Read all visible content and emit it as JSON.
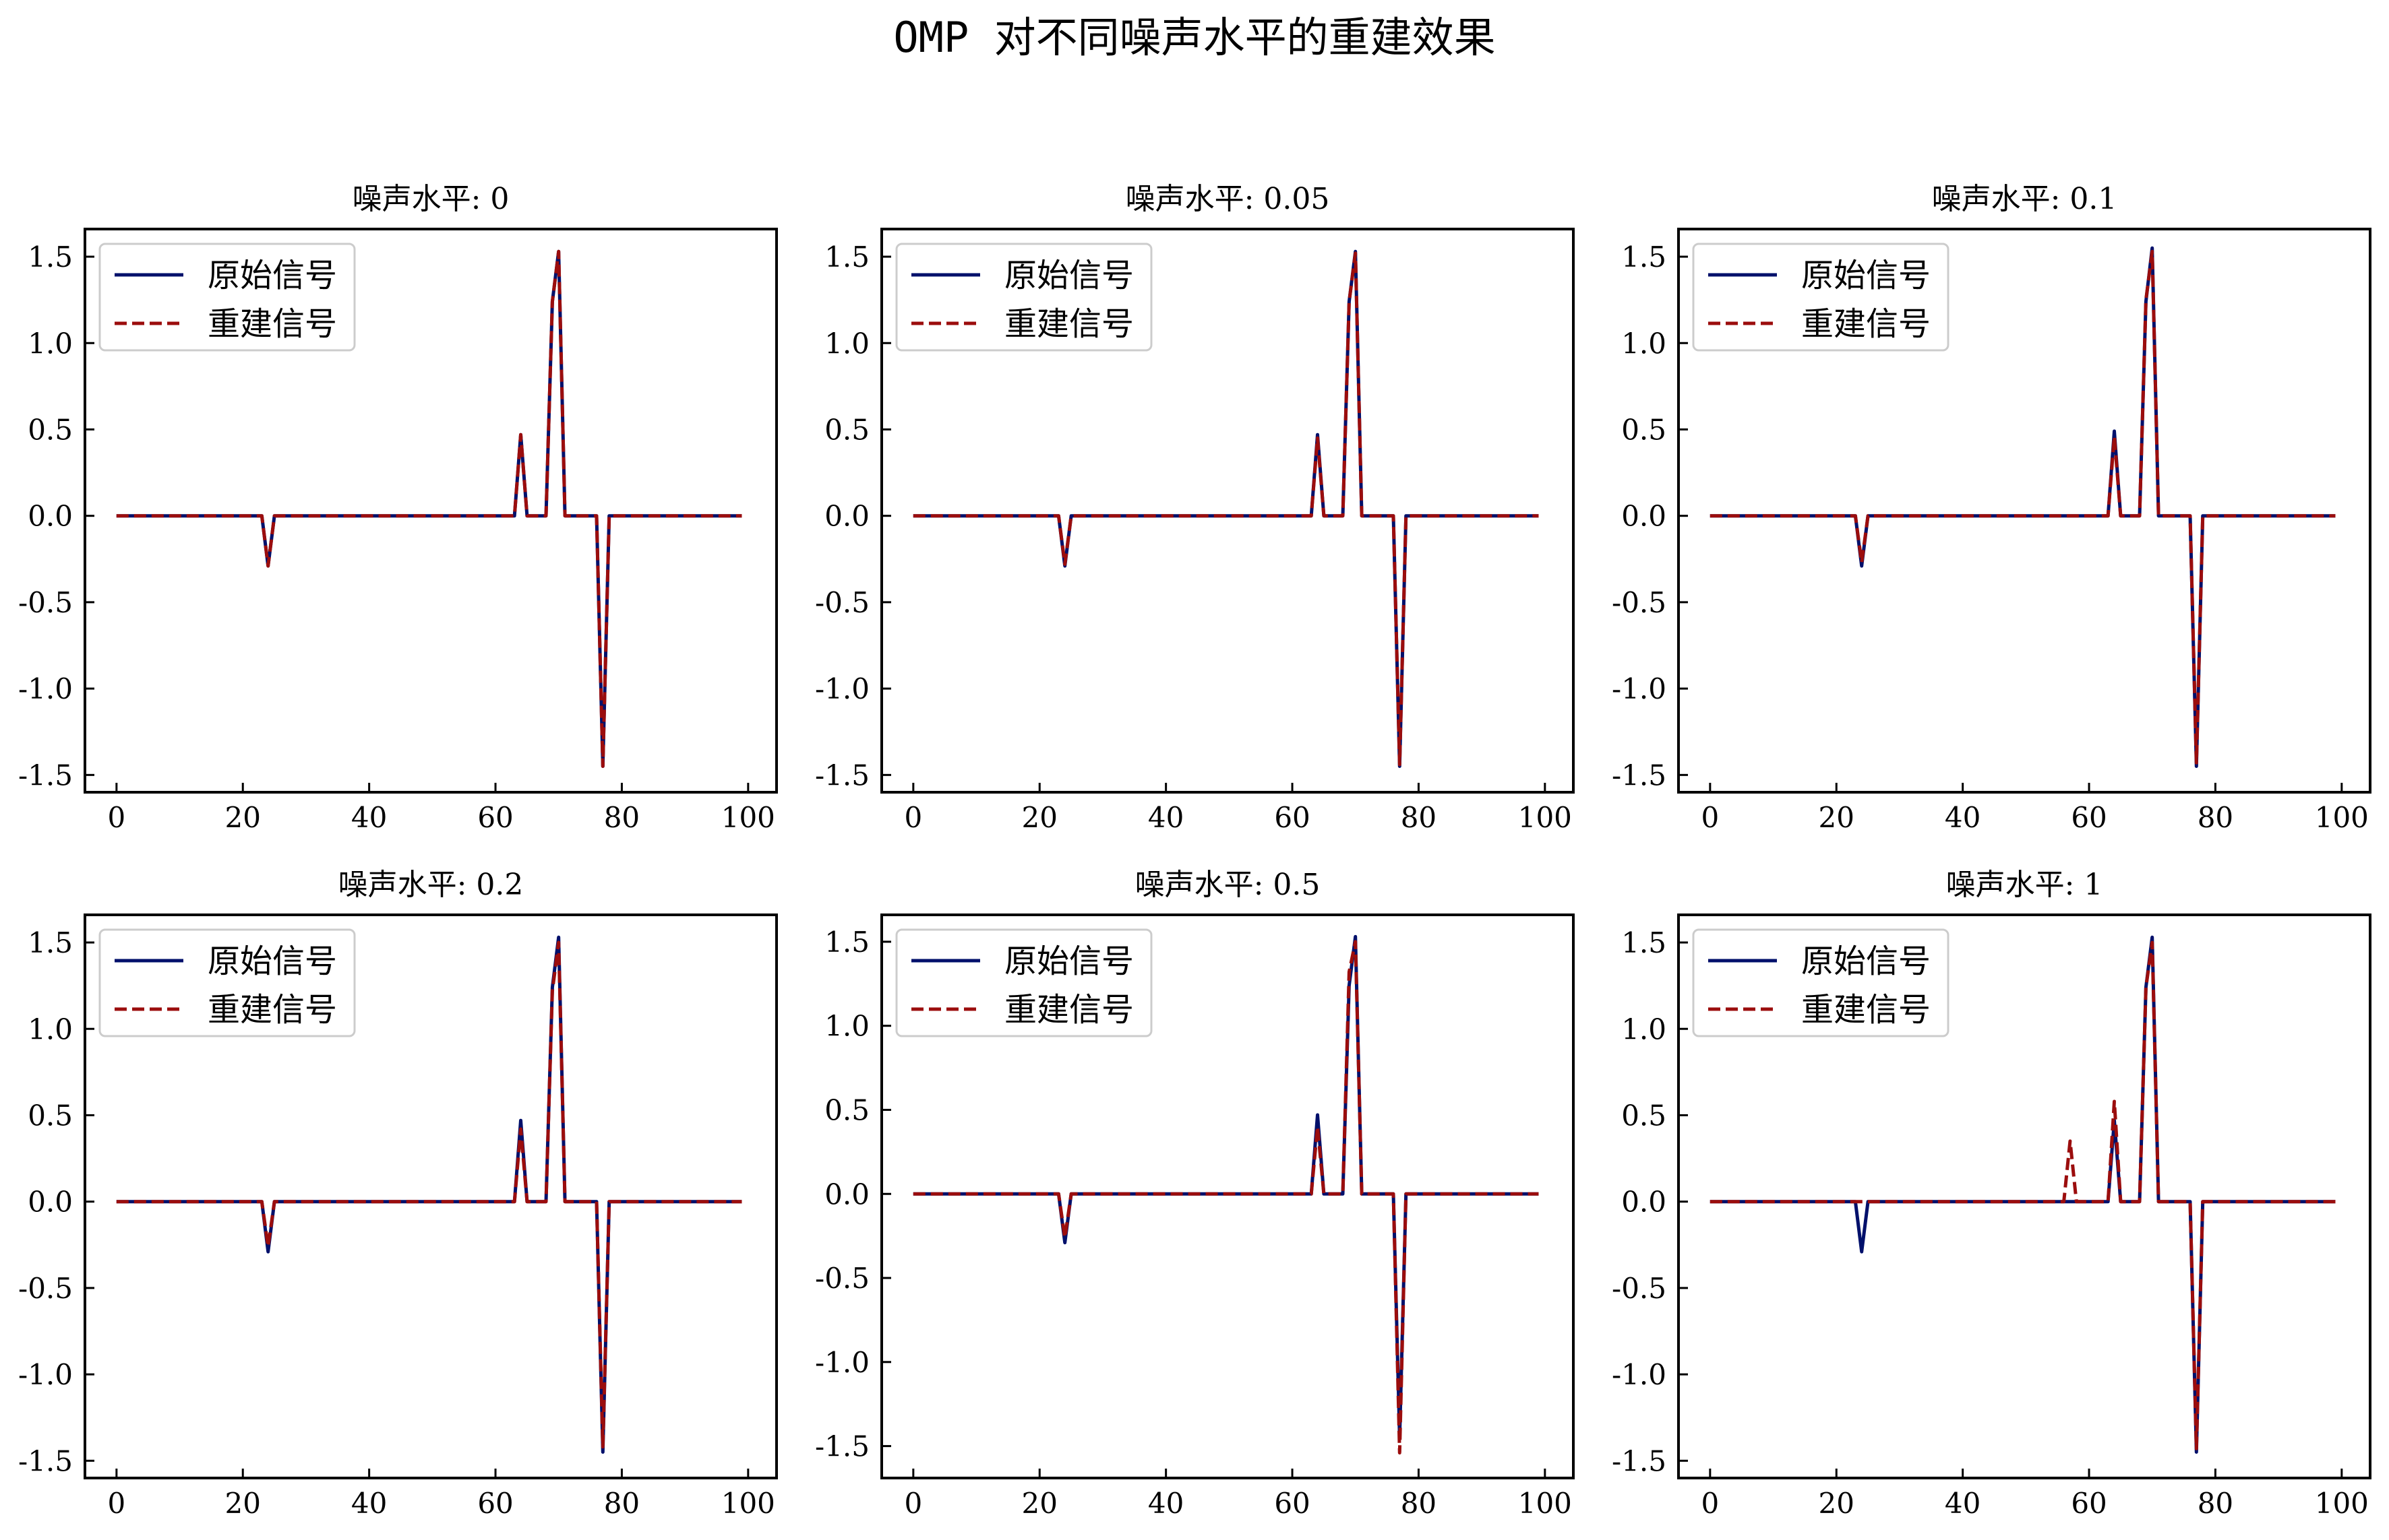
{
  "figure": {
    "title": "OMP 对不同噪声水平的重建效果",
    "colors": {
      "original": "#00106b",
      "reconstructed": "#9b0d0d"
    }
  },
  "chart_data": [
    {
      "type": "line",
      "title": "噪声水平: 0",
      "xlim": [
        0,
        100
      ],
      "ylim": [
        -1.6,
        1.66
      ],
      "xticks": [
        0,
        20,
        40,
        60,
        80,
        100
      ],
      "yticks": [
        -1.5,
        -1.0,
        -0.5,
        0.0,
        0.5,
        1.0,
        1.5
      ],
      "ytick_labels": [
        "-1.5",
        "-1.0",
        "-0.5",
        "0.0",
        "0.5",
        "1.0",
        "1.5"
      ],
      "legend": "upper-left",
      "grid": false,
      "series": [
        {
          "name": "原始信号",
          "style": "solid",
          "color": "#00106b",
          "x": [
            0,
            23,
            24,
            25,
            63,
            64,
            65,
            68,
            69,
            70,
            71,
            76,
            77,
            78,
            99
          ],
          "y": [
            0,
            0,
            -0.29,
            0,
            0,
            0.47,
            0,
            0,
            1.24,
            1.53,
            0,
            0,
            -1.45,
            0,
            0
          ]
        },
        {
          "name": "重建信号",
          "style": "dashed",
          "color": "#9b0d0d",
          "x": [
            0,
            23,
            24,
            25,
            63,
            64,
            65,
            68,
            69,
            70,
            71,
            76,
            77,
            78,
            99
          ],
          "y": [
            0,
            0,
            -0.29,
            0,
            0,
            0.47,
            0,
            0,
            1.24,
            1.53,
            0,
            0,
            -1.45,
            0,
            0
          ]
        }
      ]
    },
    {
      "type": "line",
      "title": "噪声水平: 0.05",
      "xlim": [
        0,
        100
      ],
      "ylim": [
        -1.6,
        1.66
      ],
      "xticks": [
        0,
        20,
        40,
        60,
        80,
        100
      ],
      "yticks": [
        -1.5,
        -1.0,
        -0.5,
        0.0,
        0.5,
        1.0,
        1.5
      ],
      "ytick_labels": [
        "-1.5",
        "-1.0",
        "-0.5",
        "0.0",
        "0.5",
        "1.0",
        "1.5"
      ],
      "legend": "upper-left",
      "grid": false,
      "series": [
        {
          "name": "原始信号",
          "style": "solid",
          "color": "#00106b",
          "x": [
            0,
            23,
            24,
            25,
            63,
            64,
            65,
            68,
            69,
            70,
            71,
            76,
            77,
            78,
            99
          ],
          "y": [
            0,
            0,
            -0.29,
            0,
            0,
            0.47,
            0,
            0,
            1.24,
            1.53,
            0,
            0,
            -1.45,
            0,
            0
          ]
        },
        {
          "name": "重建信号",
          "style": "dashed",
          "color": "#9b0d0d",
          "x": [
            0,
            23,
            24,
            25,
            63,
            64,
            65,
            68,
            69,
            70,
            71,
            76,
            77,
            78,
            99
          ],
          "y": [
            0,
            0,
            -0.28,
            0,
            0,
            0.45,
            0,
            0,
            1.24,
            1.52,
            0,
            0,
            -1.44,
            0,
            0
          ]
        }
      ]
    },
    {
      "type": "line",
      "title": "噪声水平: 0.1",
      "xlim": [
        0,
        100
      ],
      "ylim": [
        -1.6,
        1.66
      ],
      "xticks": [
        0,
        20,
        40,
        60,
        80,
        100
      ],
      "yticks": [
        -1.5,
        -1.0,
        -0.5,
        0.0,
        0.5,
        1.0,
        1.5
      ],
      "ytick_labels": [
        "-1.5",
        "-1.0",
        "-0.5",
        "0.0",
        "0.5",
        "1.0",
        "1.5"
      ],
      "legend": "upper-left",
      "grid": false,
      "series": [
        {
          "name": "原始信号",
          "style": "solid",
          "color": "#00106b",
          "x": [
            0,
            23,
            24,
            25,
            63,
            64,
            65,
            68,
            69,
            70,
            71,
            76,
            77,
            78,
            99
          ],
          "y": [
            0,
            0,
            -0.29,
            0,
            0,
            0.49,
            0,
            0,
            1.24,
            1.55,
            0,
            0,
            -1.45,
            0,
            0
          ]
        },
        {
          "name": "重建信号",
          "style": "dashed",
          "color": "#9b0d0d",
          "x": [
            0,
            23,
            24,
            25,
            63,
            64,
            65,
            68,
            69,
            70,
            71,
            76,
            77,
            78,
            99
          ],
          "y": [
            0,
            0,
            -0.27,
            0,
            0,
            0.46,
            0,
            0,
            1.25,
            1.53,
            0,
            0,
            -1.43,
            0,
            0
          ]
        }
      ]
    },
    {
      "type": "line",
      "title": "噪声水平: 0.2",
      "xlim": [
        0,
        100
      ],
      "ylim": [
        -1.6,
        1.66
      ],
      "xticks": [
        0,
        20,
        40,
        60,
        80,
        100
      ],
      "yticks": [
        -1.5,
        -1.0,
        -0.5,
        0.0,
        0.5,
        1.0,
        1.5
      ],
      "ytick_labels": [
        "-1.5",
        "-1.0",
        "-0.5",
        "0.0",
        "0.5",
        "1.0",
        "1.5"
      ],
      "legend": "upper-left",
      "grid": false,
      "series": [
        {
          "name": "原始信号",
          "style": "solid",
          "color": "#00106b",
          "x": [
            0,
            23,
            24,
            25,
            63,
            64,
            65,
            68,
            69,
            70,
            71,
            76,
            77,
            78,
            99
          ],
          "y": [
            0,
            0,
            -0.29,
            0,
            0,
            0.47,
            0,
            0,
            1.24,
            1.53,
            0,
            0,
            -1.45,
            0,
            0
          ]
        },
        {
          "name": "重建信号",
          "style": "dashed",
          "color": "#9b0d0d",
          "x": [
            0,
            23,
            24,
            25,
            63,
            64,
            65,
            68,
            69,
            70,
            71,
            76,
            77,
            78,
            99
          ],
          "y": [
            0,
            0,
            -0.26,
            0,
            0,
            0.42,
            0,
            0,
            1.22,
            1.5,
            0,
            0,
            -1.42,
            0,
            0
          ]
        }
      ]
    },
    {
      "type": "line",
      "title": "噪声水平: 0.5",
      "xlim": [
        0,
        100
      ],
      "ylim": [
        -1.69,
        1.66
      ],
      "xticks": [
        0,
        20,
        40,
        60,
        80,
        100
      ],
      "yticks": [
        -1.5,
        -1.0,
        -0.5,
        0.0,
        0.5,
        1.0,
        1.5
      ],
      "ytick_labels": [
        "-1.5",
        "-1.0",
        "-0.5",
        "0.0",
        "0.5",
        "1.0",
        "1.5"
      ],
      "legend": "upper-left",
      "grid": false,
      "series": [
        {
          "name": "原始信号",
          "style": "solid",
          "color": "#00106b",
          "x": [
            0,
            23,
            24,
            25,
            63,
            64,
            65,
            68,
            69,
            70,
            71,
            76,
            77,
            78,
            99
          ],
          "y": [
            0,
            0,
            -0.29,
            0,
            0,
            0.47,
            0,
            0,
            1.24,
            1.53,
            0,
            0,
            -1.45,
            0,
            0
          ]
        },
        {
          "name": "重建信号",
          "style": "dashed",
          "color": "#9b0d0d",
          "x": [
            0,
            23,
            24,
            25,
            63,
            64,
            65,
            68,
            69,
            70,
            71,
            76,
            77,
            78,
            99
          ],
          "y": [
            0,
            0,
            -0.26,
            0,
            0,
            0.4,
            0,
            0,
            1.32,
            1.5,
            0,
            0,
            -1.54,
            0,
            0
          ]
        }
      ]
    },
    {
      "type": "line",
      "title": "噪声水平: 1",
      "xlim": [
        0,
        100
      ],
      "ylim": [
        -1.6,
        1.66
      ],
      "xticks": [
        0,
        20,
        40,
        60,
        80,
        100
      ],
      "yticks": [
        -1.5,
        -1.0,
        -0.5,
        0.0,
        0.5,
        1.0,
        1.5
      ],
      "ytick_labels": [
        "-1.5",
        "-1.0",
        "-0.5",
        "0.0",
        "0.5",
        "1.0",
        "1.5"
      ],
      "legend": "upper-left",
      "grid": false,
      "series": [
        {
          "name": "原始信号",
          "style": "solid",
          "color": "#00106b",
          "x": [
            0,
            23,
            24,
            25,
            63,
            64,
            65,
            68,
            69,
            70,
            71,
            76,
            77,
            78,
            99
          ],
          "y": [
            0,
            0,
            -0.29,
            0,
            0,
            0.47,
            0,
            0,
            1.24,
            1.53,
            0,
            0,
            -1.45,
            0,
            0
          ]
        },
        {
          "name": "重建信号",
          "style": "dashed",
          "color": "#9b0d0d",
          "x": [
            0,
            56,
            57,
            58,
            63,
            64,
            65,
            68,
            69,
            70,
            71,
            76,
            77,
            78,
            99
          ],
          "y": [
            0,
            0,
            0.35,
            0,
            0,
            0.58,
            0,
            0,
            1.24,
            1.5,
            0,
            0,
            -1.43,
            0,
            0
          ]
        }
      ]
    }
  ]
}
